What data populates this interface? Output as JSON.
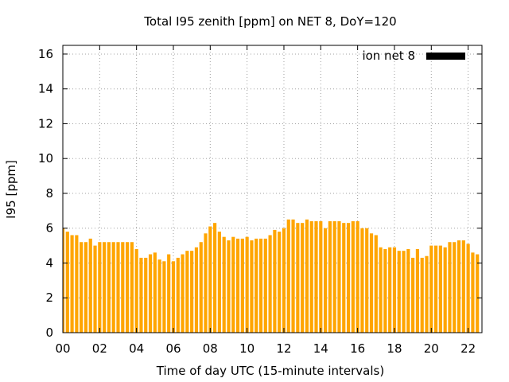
{
  "chart_data": {
    "type": "bar",
    "title": "Total I95 zenith [ppm] on NET 8, DoY=120",
    "xlabel": "Time of day UTC (15-minute intervals)",
    "ylabel": "I95 [ppm]",
    "legend": {
      "label": "ion net 8",
      "placement": "top-right",
      "swatch_color": "#000000"
    },
    "bar_color": "#ffa500",
    "grid": true,
    "xlim": [
      0,
      22.75
    ],
    "ylim": [
      0,
      16.5
    ],
    "x_ticks": [
      "00",
      "02",
      "04",
      "06",
      "08",
      "10",
      "12",
      "14",
      "16",
      "18",
      "20",
      "22"
    ],
    "y_ticks": [
      "0",
      "2",
      "4",
      "6",
      "8",
      "10",
      "12",
      "14",
      "16"
    ],
    "interval_hours": 0.25,
    "series": [
      {
        "name": "ion net 8",
        "values": [
          6.0,
          5.8,
          5.6,
          5.6,
          5.2,
          5.2,
          5.4,
          5.0,
          5.2,
          5.2,
          5.2,
          5.2,
          5.2,
          5.2,
          5.2,
          5.2,
          4.8,
          4.3,
          4.3,
          4.5,
          4.6,
          4.2,
          4.1,
          4.5,
          4.1,
          4.3,
          4.5,
          4.7,
          4.7,
          4.9,
          5.2,
          5.7,
          6.1,
          6.3,
          5.8,
          5.5,
          5.3,
          5.5,
          5.4,
          5.4,
          5.5,
          5.3,
          5.4,
          5.4,
          5.4,
          5.6,
          5.9,
          5.8,
          6.0,
          6.5,
          6.5,
          6.3,
          6.3,
          6.5,
          6.4,
          6.4,
          6.4,
          6.0,
          6.4,
          6.4,
          6.4,
          6.3,
          6.3,
          6.4,
          6.4,
          6.0,
          6.0,
          5.7,
          5.6,
          4.9,
          4.8,
          4.9,
          4.9,
          4.7,
          4.7,
          4.8,
          4.3,
          4.8,
          4.3,
          4.4,
          5.0,
          5.0,
          5.0,
          4.9,
          5.2,
          5.2,
          5.3,
          5.3,
          5.1,
          4.6,
          4.5
        ]
      }
    ]
  }
}
